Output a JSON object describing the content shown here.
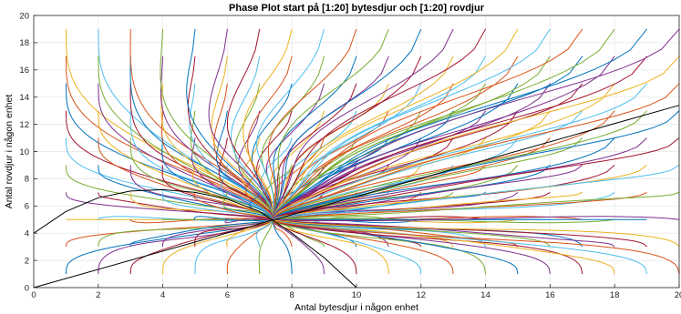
{
  "chart_data": {
    "type": "line",
    "title": "Phase Plot start på [1:20] bytesdjur och [1:20] rovdjur",
    "xlabel": "Antal bytesdjur i någon enhet",
    "ylabel": "Antal rovdjur i någon enhet",
    "xlim": [
      0,
      20
    ],
    "ylim": [
      0,
      20
    ],
    "xticks": [
      0,
      2,
      4,
      6,
      8,
      10,
      12,
      14,
      16,
      18,
      20
    ],
    "yticks": [
      0,
      2,
      4,
      6,
      8,
      10,
      12,
      14,
      16,
      18,
      20
    ],
    "grid": true,
    "equilibrium": [
      7.4,
      5.0
    ],
    "start_grid_x": [
      1,
      20
    ],
    "start_grid_y": [
      1,
      20
    ],
    "curves": [
      {
        "kind": "parabola",
        "x": [
          0,
          1,
          2,
          3,
          4,
          5,
          6,
          7,
          8,
          9,
          10
        ],
        "y": [
          4.0,
          5.6,
          6.6,
          7.1,
          7.2,
          7.0,
          6.5,
          5.6,
          4.0,
          2.2,
          0.0
        ],
        "color": "#000000"
      },
      {
        "kind": "line",
        "x": [
          0,
          20
        ],
        "y": [
          0,
          13.4
        ],
        "color": "#000000"
      }
    ],
    "colors": [
      "#0072BD",
      "#D95319",
      "#EDB120",
      "#7E2F8E",
      "#77AC30",
      "#4DBEEE",
      "#A2142F"
    ]
  }
}
